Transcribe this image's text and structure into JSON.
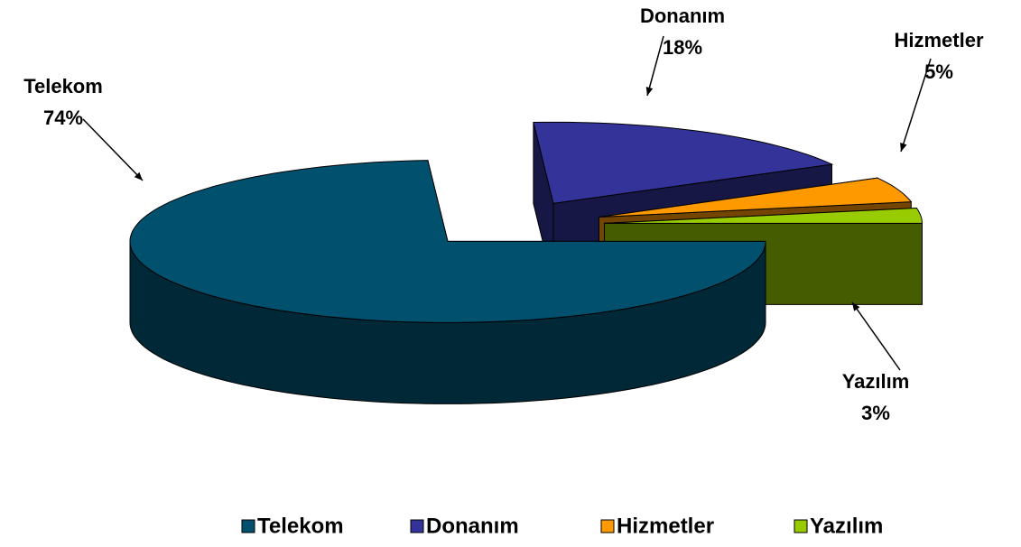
{
  "chart_data": {
    "type": "pie",
    "categories": [
      "Telekom",
      "Donanım",
      "Hizmetler",
      "Yazılım"
    ],
    "values": [
      74,
      18,
      5,
      3
    ],
    "value_labels": [
      "74%",
      "18%",
      "5%",
      "3%"
    ],
    "colors": [
      "#00506e",
      "#333399",
      "#ff9900",
      "#99cc00"
    ],
    "legend": "bottom"
  }
}
